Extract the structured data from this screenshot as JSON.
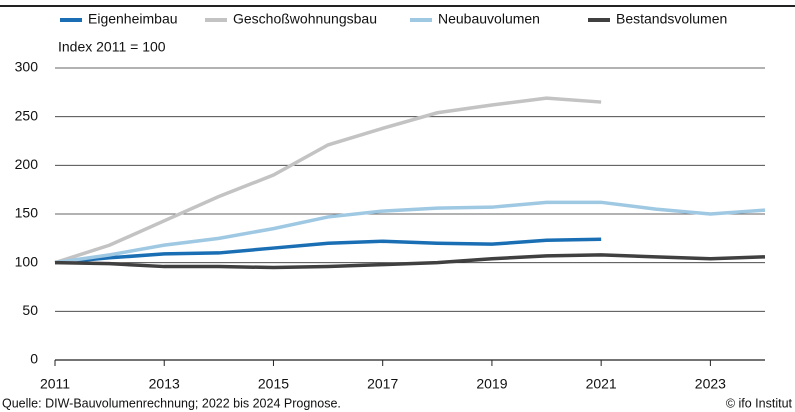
{
  "chart_data": {
    "type": "line",
    "y_label": "Index 2011 = 100",
    "source": "Quelle: DIW-Bauvolumenrechnung; 2022 bis 2024 Prognose.",
    "credit": "© ifo Institut",
    "x": [
      2011,
      2012,
      2013,
      2014,
      2015,
      2016,
      2017,
      2018,
      2019,
      2020,
      2021,
      2022,
      2023,
      2024
    ],
    "series": [
      {
        "name": "Eigenheimbau",
        "color": "#1a6fb4",
        "values": [
          100,
          105,
          109,
          110,
          115,
          120,
          122,
          120,
          119,
          123,
          124,
          null,
          null,
          null
        ]
      },
      {
        "name": "Geschoßwohnungsbau",
        "color": "#c3c3c3",
        "values": [
          100,
          118,
          143,
          168,
          190,
          221,
          238,
          254,
          262,
          269,
          265,
          null,
          null,
          null
        ]
      },
      {
        "name": "Neubauvolumen",
        "color": "#9fc8e3",
        "values": [
          100,
          108,
          118,
          125,
          135,
          147,
          153,
          156,
          157,
          162,
          162,
          155,
          150,
          154
        ]
      },
      {
        "name": "Bestandsvolumen",
        "color": "#404040",
        "values": [
          100,
          99,
          96,
          96,
          95,
          96,
          98,
          100,
          104,
          107,
          108,
          106,
          104,
          106
        ]
      }
    ],
    "xlim": [
      2011,
      2024
    ],
    "xticks": [
      2011,
      2013,
      2015,
      2017,
      2019,
      2021,
      2023
    ],
    "ylim": [
      0,
      300
    ],
    "yticks": [
      0,
      50,
      100,
      150,
      200,
      250,
      300
    ],
    "grid": true
  }
}
